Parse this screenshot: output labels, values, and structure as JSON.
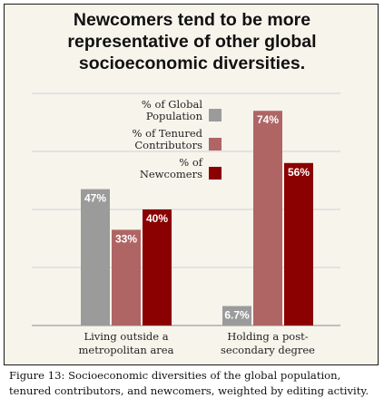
{
  "chart_data": {
    "type": "bar",
    "title_lines": [
      "Newcomers tend to be more",
      "representative of other global",
      "socioeconomic diversities."
    ],
    "categories": [
      [
        "Living outside a",
        "metropolitan area"
      ],
      [
        "Holding a post-",
        "secondary degree"
      ]
    ],
    "series": [
      {
        "name": [
          "% of Global",
          "Population"
        ],
        "values": [
          47,
          6.7
        ],
        "labels": [
          "47%",
          "6.7%"
        ],
        "color": "#9b9b9b"
      },
      {
        "name": [
          "% of Tenured",
          "Contributors"
        ],
        "values": [
          33,
          74
        ],
        "labels": [
          "33%",
          "74%"
        ],
        "color": "#b06565"
      },
      {
        "name": [
          "% of",
          "Newcomers"
        ],
        "values": [
          40,
          56
        ],
        "labels": [
          "40%",
          "56%"
        ],
        "color": "#8b0000"
      }
    ],
    "ylim": [
      0,
      80
    ],
    "grid": true,
    "legend": "top-center"
  },
  "caption": "Figure 13: Socioeconomic diversities of the global population, tenured contributors, and newcomers, weighted by editing activity."
}
